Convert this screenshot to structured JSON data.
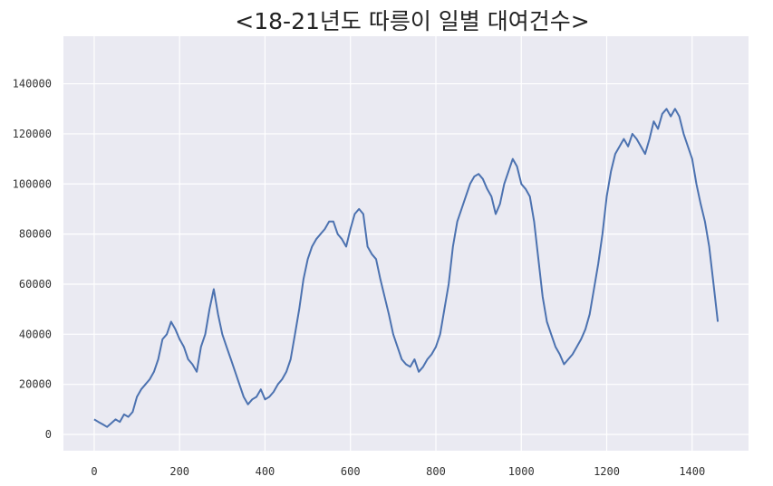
{
  "chart_data": {
    "type": "line",
    "title": "<18-21년도 따릉이 일별 대여건수>",
    "xlabel": "",
    "ylabel": "",
    "xlim": [
      -72,
      1532
    ],
    "ylim": [
      -6500,
      159000
    ],
    "grid": true,
    "xticks": [
      0,
      200,
      400,
      600,
      800,
      1000,
      1200,
      1400
    ],
    "yticks": [
      0,
      20000,
      40000,
      60000,
      80000,
      100000,
      120000,
      140000
    ],
    "series": [
      {
        "color": "#4c72b0",
        "x": [
          0,
          10,
          20,
          30,
          40,
          50,
          60,
          70,
          80,
          90,
          100,
          110,
          120,
          130,
          140,
          150,
          160,
          170,
          180,
          190,
          200,
          210,
          220,
          230,
          240,
          250,
          260,
          270,
          280,
          290,
          300,
          310,
          320,
          330,
          340,
          350,
          360,
          370,
          380,
          390,
          400,
          410,
          420,
          430,
          440,
          450,
          460,
          470,
          480,
          490,
          500,
          510,
          520,
          530,
          540,
          550,
          560,
          570,
          580,
          590,
          600,
          610,
          620,
          630,
          640,
          650,
          660,
          670,
          680,
          690,
          700,
          710,
          720,
          730,
          740,
          750,
          760,
          770,
          780,
          790,
          800,
          810,
          820,
          830,
          840,
          850,
          860,
          870,
          880,
          890,
          900,
          910,
          920,
          930,
          940,
          950,
          960,
          970,
          980,
          990,
          1000,
          1010,
          1020,
          1030,
          1040,
          1050,
          1060,
          1070,
          1080,
          1090,
          1100,
          1110,
          1120,
          1130,
          1140,
          1150,
          1160,
          1170,
          1180,
          1190,
          1200,
          1210,
          1220,
          1230,
          1240,
          1250,
          1260,
          1270,
          1280,
          1290,
          1300,
          1310,
          1320,
          1330,
          1340,
          1350,
          1360,
          1370,
          1380,
          1390,
          1400,
          1410,
          1420,
          1430,
          1440,
          1450,
          1460
        ],
        "y": [
          6000,
          5000,
          4000,
          3000,
          4500,
          6000,
          5000,
          8000,
          7000,
          9000,
          15000,
          18000,
          20000,
          22000,
          25000,
          30000,
          38000,
          40000,
          45000,
          42000,
          38000,
          35000,
          30000,
          28000,
          25000,
          35000,
          40000,
          50000,
          58000,
          48000,
          40000,
          35000,
          30000,
          25000,
          20000,
          15000,
          12000,
          14000,
          15000,
          18000,
          14000,
          15000,
          17000,
          20000,
          22000,
          25000,
          30000,
          40000,
          50000,
          62000,
          70000,
          75000,
          78000,
          80000,
          82000,
          85000,
          85000,
          80000,
          78000,
          75000,
          82000,
          88000,
          90000,
          88000,
          75000,
          72000,
          70000,
          62000,
          55000,
          48000,
          40000,
          35000,
          30000,
          28000,
          27000,
          30000,
          25000,
          27000,
          30000,
          32000,
          35000,
          40000,
          50000,
          60000,
          75000,
          85000,
          90000,
          95000,
          100000,
          103000,
          104000,
          102000,
          98000,
          95000,
          88000,
          92000,
          100000,
          105000,
          110000,
          107000,
          100000,
          98000,
          95000,
          85000,
          70000,
          55000,
          45000,
          40000,
          35000,
          32000,
          28000,
          30000,
          32000,
          35000,
          38000,
          42000,
          48000,
          58000,
          68000,
          80000,
          95000,
          105000,
          112000,
          115000,
          118000,
          115000,
          120000,
          118000,
          115000,
          112000,
          118000,
          125000,
          122000,
          128000,
          130000,
          127000,
          130000,
          127000,
          120000,
          115000,
          110000,
          100000,
          92000,
          85000,
          75000,
          60000,
          45000
        ]
      }
    ]
  }
}
